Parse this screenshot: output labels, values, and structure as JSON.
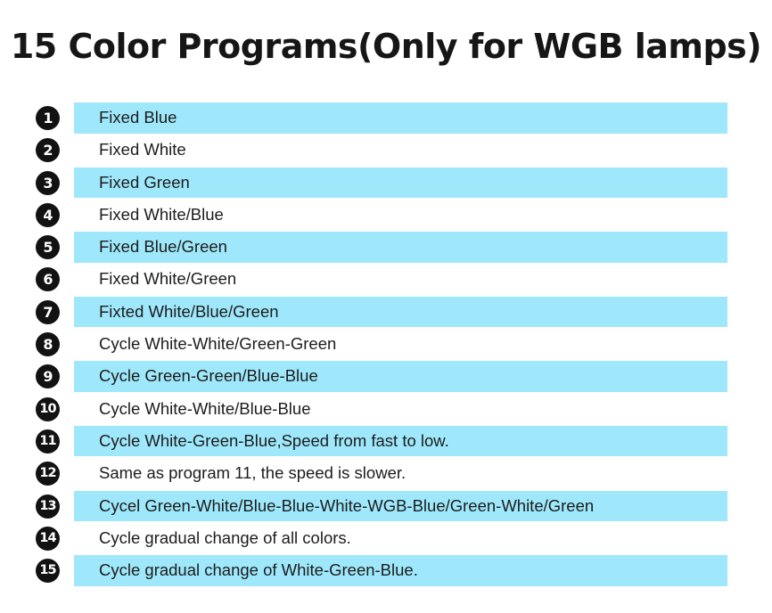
{
  "title": "15 Color Programs(Only for WGB lamps)",
  "programs": [
    {
      "number": "1",
      "label": "Fixed Blue",
      "shaded": true
    },
    {
      "number": "2",
      "label": "Fixed White",
      "shaded": false
    },
    {
      "number": "3",
      "label": "Fixed Green",
      "shaded": true
    },
    {
      "number": "4",
      "label": "Fixed White/Blue",
      "shaded": false
    },
    {
      "number": "5",
      "label": "Fixed Blue/Green",
      "shaded": true
    },
    {
      "number": "6",
      "label": "Fixed White/Green",
      "shaded": false
    },
    {
      "number": "7",
      "label": "Fixted White/Blue/Green",
      "shaded": true
    },
    {
      "number": "8",
      "label": "Cycle White-White/Green-Green",
      "shaded": false
    },
    {
      "number": "9",
      "label": "Cycle Green-Green/Blue-Blue",
      "shaded": true
    },
    {
      "number": "10",
      "label": "Cycle White-White/Blue-Blue",
      "shaded": false
    },
    {
      "number": "11",
      "label": "Cycle White-Green-Blue,Speed from fast to low.",
      "shaded": true
    },
    {
      "number": "12",
      "label": "Same as program 11, the speed is slower.",
      "shaded": false
    },
    {
      "number": "13",
      "label": "Cycel Green-White/Blue-Blue-White-WGB-Blue/Green-White/Green",
      "shaded": true
    },
    {
      "number": "14",
      "label": "Cycle gradual change of all colors.",
      "shaded": false
    },
    {
      "number": "15",
      "label": "Cycle gradual change of White-Green-Blue.",
      "shaded": true
    }
  ],
  "colors": {
    "band": "#9fe8fb",
    "badge": "#121212",
    "text": "#1c1c1c"
  }
}
